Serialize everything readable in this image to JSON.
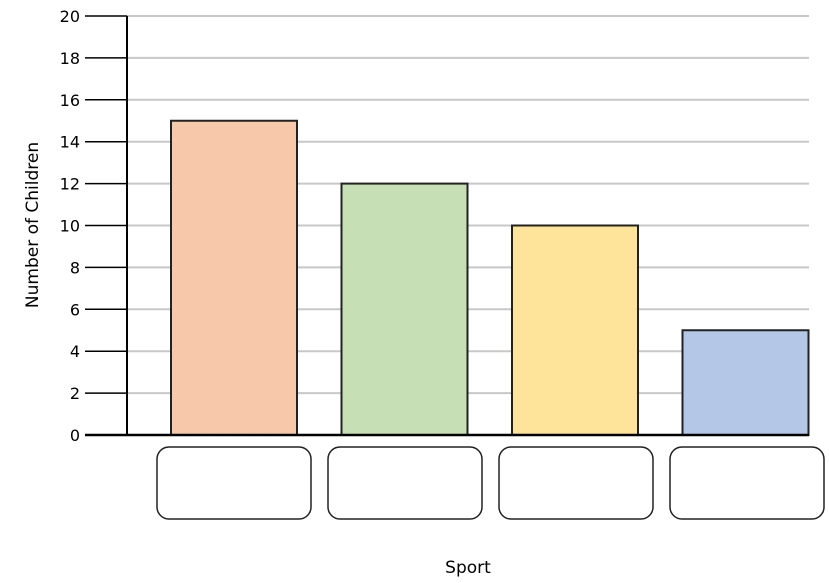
{
  "chart_data": {
    "type": "bar",
    "title": "",
    "xlabel": "Sport",
    "ylabel": "Number of Children",
    "ylim": [
      0,
      20
    ],
    "yticks": [
      0,
      2,
      4,
      6,
      8,
      10,
      12,
      14,
      16,
      18,
      20
    ],
    "ytick_labels": [
      "0",
      "2",
      "4",
      "6",
      "8",
      "10",
      "12",
      "14",
      "16",
      "18",
      "20"
    ],
    "grid": true,
    "categories": [
      "",
      "",
      "",
      ""
    ],
    "values": [
      15,
      12,
      10,
      5
    ],
    "bar_colors": [
      "#f7c9aa",
      "#c6dfb4",
      "#fde49a",
      "#b4c7e7"
    ],
    "grid_color": "#c8c8c8",
    "axis_color": "#000000"
  }
}
